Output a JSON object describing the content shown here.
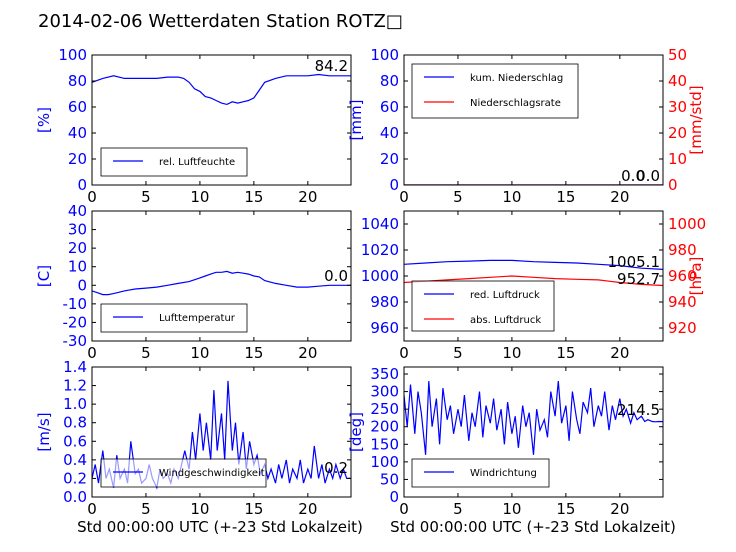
{
  "title": "2014-02-06 Wetterdaten Station ROTZ",
  "title_glyph": "□",
  "colors": {
    "primary": "#0000ff",
    "secondary": "#ff0000",
    "text": "#000000"
  },
  "xlabel": "Std 00:00:00 UTC (+-23 Std Lokalzeit)",
  "chart_data": [
    {
      "type": "line",
      "panel": "humidity",
      "x_range": [
        0,
        24
      ],
      "x_ticks": [
        0,
        5,
        10,
        15,
        20
      ],
      "ylabel": "[%]",
      "ylim": [
        0,
        100
      ],
      "y_ticks": [
        0,
        20,
        40,
        60,
        80,
        100
      ],
      "legend": "bottom-left",
      "last_value": "84.2",
      "series": [
        {
          "name": "rel. Luftfeuchte",
          "color": "#0000ff",
          "x": [
            0,
            1,
            2,
            3,
            4,
            5,
            6,
            7,
            8,
            8.5,
            9,
            9.5,
            10,
            10.5,
            11,
            11.5,
            12,
            12.5,
            13,
            13.5,
            14,
            14.5,
            15,
            15.5,
            16,
            17,
            18,
            19,
            20,
            21,
            22,
            23,
            24
          ],
          "y": [
            79,
            82,
            84,
            82,
            82,
            82,
            82,
            83,
            83,
            82,
            79,
            74,
            72,
            68,
            67,
            65,
            63,
            62,
            64,
            63,
            64,
            65,
            67,
            73,
            79,
            82,
            84,
            84,
            84,
            85,
            84,
            84,
            84
          ]
        }
      ]
    },
    {
      "type": "line",
      "panel": "precipitation",
      "x_range": [
        0,
        24
      ],
      "x_ticks": [
        0,
        5,
        10,
        15,
        20
      ],
      "ylabel": "[mm]",
      "ylim": [
        0,
        100
      ],
      "y_ticks": [
        0,
        20,
        40,
        60,
        80,
        100
      ],
      "ylabel_right": "[mm/std]",
      "ylim_right": [
        0,
        50
      ],
      "y_ticks_right": [
        0,
        10,
        20,
        30,
        40,
        50
      ],
      "legend": "top-left",
      "last_value": "0.0",
      "last_value_right": "0.0",
      "series": [
        {
          "name": "kum. Niederschlag",
          "color": "#0000ff",
          "axis": "left",
          "x": [
            0,
            24
          ],
          "y": [
            0,
            0
          ]
        },
        {
          "name": "Niederschlagsrate",
          "color": "#ff0000",
          "axis": "right",
          "x": [
            0,
            24
          ],
          "y": [
            0,
            0
          ]
        }
      ]
    },
    {
      "type": "line",
      "panel": "temperature",
      "x_range": [
        0,
        24
      ],
      "x_ticks": [
        0,
        5,
        10,
        15,
        20
      ],
      "ylabel": "[C]",
      "ylim": [
        -30,
        40
      ],
      "y_ticks": [
        -30,
        -20,
        -10,
        0,
        10,
        20,
        30,
        40
      ],
      "legend": "bottom-left",
      "last_value": "0.0",
      "series": [
        {
          "name": "Lufttemperatur",
          "color": "#0000ff",
          "x": [
            0,
            0.5,
            1,
            1.5,
            2,
            3,
            4,
            5,
            6,
            7,
            8,
            9,
            10,
            10.5,
            11,
            11.5,
            12,
            12.5,
            13,
            13.5,
            14,
            14.5,
            15,
            15.5,
            16,
            17,
            18,
            19,
            20,
            21,
            22,
            23,
            24
          ],
          "y": [
            -3,
            -4,
            -5,
            -5,
            -4.5,
            -3,
            -2,
            -1.5,
            -1,
            0,
            1,
            2,
            4,
            5,
            6,
            7,
            7,
            7.5,
            6.5,
            7,
            6.5,
            6,
            5,
            4.5,
            2.5,
            1,
            0,
            -1,
            -1,
            -0.5,
            0,
            0,
            0
          ]
        }
      ]
    },
    {
      "type": "line",
      "panel": "pressure",
      "x_range": [
        0,
        24
      ],
      "x_ticks": [
        0,
        5,
        10,
        15,
        20
      ],
      "ylim": [
        950,
        1050
      ],
      "y_ticks": [
        960,
        980,
        1000,
        1020,
        1040
      ],
      "ylabel_right": "[hPa]",
      "ylim_right": [
        910,
        1010
      ],
      "y_ticks_right": [
        920,
        940,
        960,
        980,
        1000
      ],
      "legend": "bottom-left",
      "last_value": "1005.1",
      "last_value_right": "952.7",
      "series": [
        {
          "name": "red. Luftdruck",
          "color": "#0000ff",
          "axis": "left",
          "x": [
            0,
            2,
            4,
            6,
            8,
            10,
            12,
            14,
            16,
            18,
            20,
            22,
            24
          ],
          "y": [
            1009,
            1010,
            1011,
            1011.5,
            1012,
            1012,
            1011,
            1010.5,
            1010,
            1009,
            1008,
            1006,
            1005.1
          ]
        },
        {
          "name": "abs. Luftdruck",
          "color": "#ff0000",
          "axis": "right",
          "x": [
            0,
            2,
            4,
            6,
            8,
            10,
            12,
            14,
            16,
            18,
            19,
            20,
            22,
            24
          ],
          "y": [
            955,
            956,
            957,
            958,
            959,
            960,
            959,
            958,
            957.5,
            957,
            956,
            955,
            953.5,
            952.7
          ]
        }
      ]
    },
    {
      "type": "line",
      "panel": "wind-speed",
      "x_range": [
        0,
        24
      ],
      "x_ticks": [
        0,
        5,
        10,
        15,
        20
      ],
      "ylabel": "[m/s]",
      "ylim": [
        0,
        1.4
      ],
      "y_ticks": [
        0.0,
        0.2,
        0.4,
        0.6,
        0.8,
        1.0,
        1.2,
        1.4
      ],
      "legend": "bottom-left",
      "last_value": "0.2",
      "series": [
        {
          "name": "Windgeschwindigkeit",
          "color": "#0000ff",
          "x": [
            0,
            0.3,
            0.6,
            1,
            1.3,
            1.6,
            2,
            2.3,
            2.6,
            3,
            3.3,
            3.6,
            4,
            4.3,
            4.6,
            5,
            5.3,
            5.6,
            6,
            6.3,
            6.6,
            7,
            7.3,
            7.6,
            8,
            8.3,
            8.6,
            9,
            9.3,
            9.6,
            10,
            10.3,
            10.6,
            11,
            11.3,
            11.6,
            12,
            12.3,
            12.6,
            13,
            13.3,
            13.6,
            14,
            14.3,
            14.6,
            15,
            15.3,
            15.6,
            16,
            16.3,
            16.6,
            17,
            17.3,
            17.6,
            18,
            18.3,
            18.6,
            19,
            19.3,
            19.6,
            20,
            20.3,
            20.6,
            21,
            21.3,
            21.6,
            22,
            22.3,
            22.6,
            23,
            23.3,
            23.6,
            24
          ],
          "y": [
            0.2,
            0.35,
            0.15,
            0.5,
            0.2,
            0.3,
            0.1,
            0.45,
            0.2,
            0.3,
            0.15,
            0.6,
            0.25,
            0.3,
            0.15,
            0.2,
            0.35,
            0.2,
            0.1,
            0.3,
            0.2,
            0.25,
            0.15,
            0.3,
            0.2,
            0.35,
            0.5,
            0.3,
            0.7,
            0.4,
            0.9,
            0.5,
            0.8,
            0.4,
            1.15,
            0.5,
            0.9,
            0.4,
            1.25,
            0.5,
            0.8,
            0.35,
            0.7,
            0.3,
            0.6,
            0.35,
            0.45,
            0.25,
            0.35,
            0.2,
            0.3,
            0.15,
            0.35,
            0.2,
            0.4,
            0.15,
            0.3,
            0.2,
            0.4,
            0.15,
            0.3,
            0.2,
            0.55,
            0.2,
            0.35,
            0.15,
            0.3,
            0.2,
            0.35,
            0.2,
            0.3,
            0.2,
            0.2
          ]
        }
      ]
    },
    {
      "type": "line",
      "panel": "wind-direction",
      "x_range": [
        0,
        24
      ],
      "x_ticks": [
        0,
        5,
        10,
        15,
        20
      ],
      "ylabel": "[deg]",
      "ylim": [
        0,
        370
      ],
      "y_ticks": [
        0,
        50,
        100,
        150,
        200,
        250,
        300,
        350
      ],
      "legend": "bottom-left",
      "last_value": "214.5",
      "series": [
        {
          "name": "Windrichtung",
          "color": "#0000ff",
          "x": [
            0,
            0.3,
            0.6,
            1,
            1.3,
            1.6,
            2,
            2.3,
            2.6,
            3,
            3.3,
            3.6,
            4,
            4.3,
            4.6,
            5,
            5.3,
            5.6,
            6,
            6.3,
            6.6,
            7,
            7.3,
            7.6,
            8,
            8.3,
            8.6,
            9,
            9.3,
            9.6,
            10,
            10.3,
            10.6,
            11,
            11.3,
            11.6,
            12,
            12.3,
            12.6,
            13,
            13.3,
            13.6,
            14,
            14.3,
            14.6,
            15,
            15.3,
            15.6,
            16,
            16.3,
            16.6,
            17,
            17.3,
            17.6,
            18,
            18.3,
            18.6,
            19,
            19.3,
            19.6,
            20,
            20.3,
            20.6,
            21,
            21.3,
            21.6,
            22,
            22.3,
            22.6,
            23,
            23.3,
            23.6,
            24
          ],
          "y": [
            290,
            200,
            320,
            180,
            300,
            240,
            120,
            330,
            200,
            280,
            150,
            310,
            220,
            260,
            180,
            250,
            200,
            290,
            160,
            240,
            200,
            300,
            170,
            260,
            210,
            280,
            190,
            250,
            150,
            270,
            180,
            230,
            140,
            260,
            200,
            240,
            120,
            250,
            190,
            220,
            170,
            300,
            230,
            330,
            210,
            260,
            160,
            300,
            220,
            180,
            270,
            240,
            310,
            200,
            260,
            230,
            300,
            190,
            260,
            220,
            280,
            230,
            250,
            210,
            240,
            220,
            230,
            215,
            220,
            215,
            214,
            215,
            214.5
          ]
        }
      ]
    }
  ]
}
